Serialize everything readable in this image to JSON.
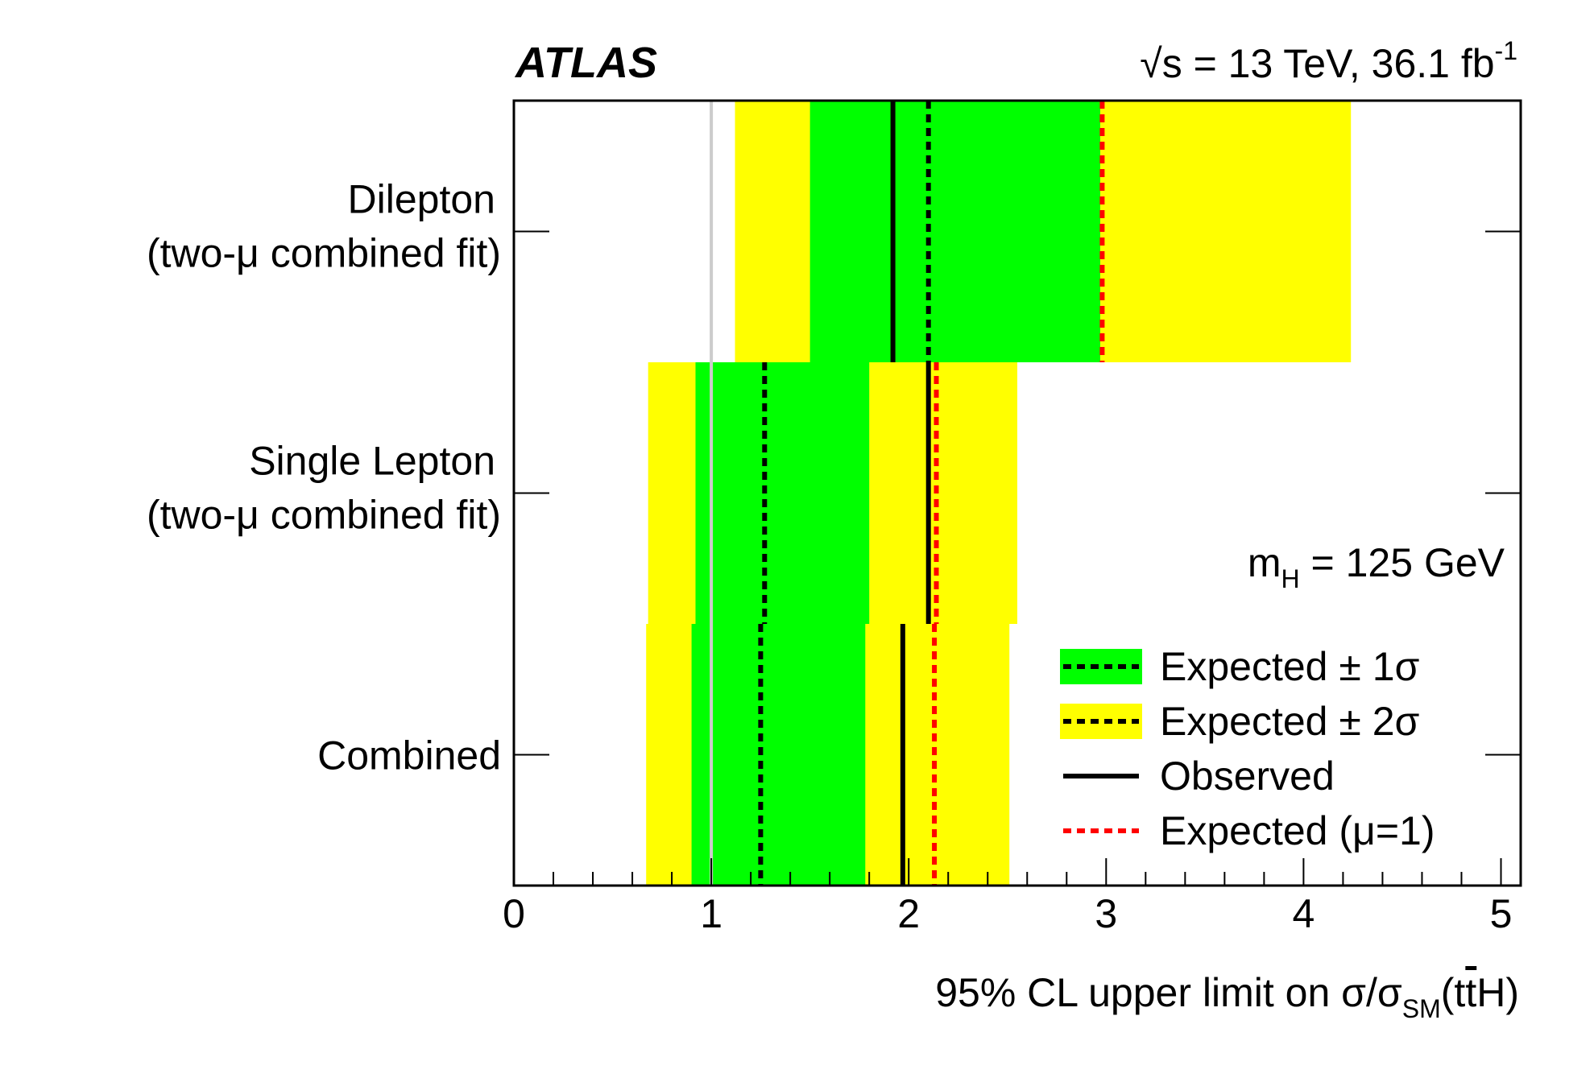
{
  "chart_data": {
    "type": "bar",
    "experiment": "ATLAS",
    "energy_label": {
      "sqrt": "√",
      "s": "s",
      "rest": " = 13 TeV, 36.1 fb",
      "sup": "-1"
    },
    "mass_label": {
      "m": "m",
      "sub": "H",
      "rest": " = 125 GeV"
    },
    "xlabel": {
      "main": "95% CL upper limit on σ/σ",
      "sub": "SM",
      "tail_open": "(t",
      "tbar": "t",
      "tail_close": "H)"
    },
    "xlim": [
      0,
      5.1
    ],
    "x_ticks": [
      0,
      1,
      2,
      3,
      4,
      5
    ],
    "x_tick_labels": [
      "0",
      "1",
      "2",
      "3",
      "4",
      "5"
    ],
    "categories": [
      {
        "name": "Dilepton",
        "subname": "(two-μ combined fit)",
        "expected_minus2": 1.12,
        "expected_minus1": 1.5,
        "expected": 2.1,
        "expected_plus1": 2.97,
        "expected_plus2": 4.24,
        "observed": 1.92,
        "expected_mu1": 2.98
      },
      {
        "name": "Single Lepton",
        "subname": "(two-μ combined fit)",
        "expected_minus2": 0.68,
        "expected_minus1": 0.92,
        "expected": 1.27,
        "expected_plus1": 1.8,
        "expected_plus2": 2.55,
        "observed": 2.1,
        "expected_mu1": 2.14
      },
      {
        "name": "Combined",
        "subname": "",
        "expected_minus2": 0.67,
        "expected_minus1": 0.9,
        "expected": 1.25,
        "expected_plus1": 1.78,
        "expected_plus2": 2.51,
        "observed": 1.97,
        "expected_mu1": 2.13
      }
    ],
    "sm_reference": 1,
    "legend": {
      "placement": "bottom-right",
      "entries": [
        {
          "key": "pm1",
          "label": "Expected ± 1σ"
        },
        {
          "key": "pm2",
          "label": "Expected ± 2σ"
        },
        {
          "key": "obs",
          "label": "Observed"
        },
        {
          "key": "mu1",
          "label": "Expected (μ=1)"
        }
      ]
    },
    "colors": {
      "one_sigma": "#00ff00",
      "two_sigma": "#ffff00",
      "observed": "#000000",
      "expected": "#000000",
      "expected_mu1": "#ff0000",
      "sm_line": "#cccccc"
    }
  }
}
